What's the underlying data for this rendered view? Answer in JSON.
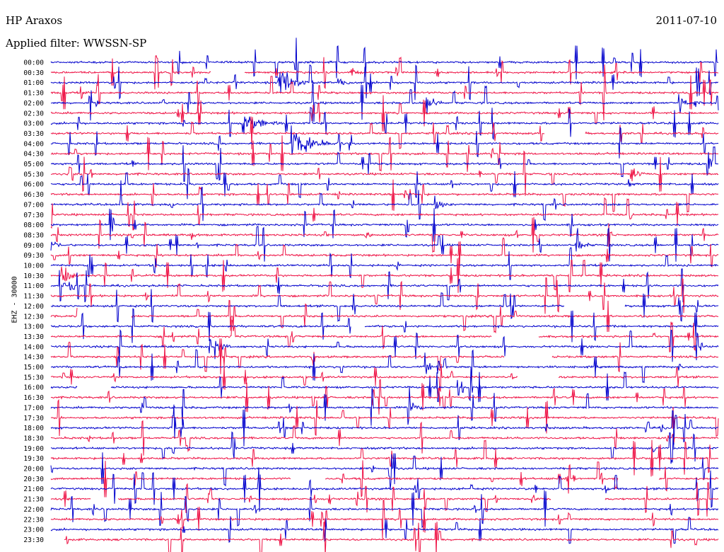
{
  "header": {
    "station": "HP Araxos",
    "date": "2011-07-10",
    "filter": "Applied filter: WWSSN-SP",
    "channel": "EHZ - 30000"
  },
  "colors": {
    "even_row": "#0000cc",
    "odd_row": "#ee1144"
  },
  "chart_data": {
    "type": "line",
    "title": "HP Araxos",
    "ylabel": "EHZ - 30000",
    "row_labels": [
      "00:00",
      "00:30",
      "01:00",
      "01:30",
      "02:00",
      "02:30",
      "03:00",
      "03:30",
      "04:00",
      "04:30",
      "05:00",
      "05:30",
      "06:00",
      "06:30",
      "07:00",
      "07:30",
      "08:00",
      "08:30",
      "09:00",
      "09:30",
      "10:00",
      "10:30",
      "11:00",
      "11:30",
      "12:00",
      "12:30",
      "13:00",
      "13:30",
      "14:00",
      "14:30",
      "15:00",
      "15:30",
      "16:00",
      "16:30",
      "17:00",
      "17:30",
      "18:00",
      "18:30",
      "19:00",
      "19:30",
      "20:00",
      "20:30",
      "21:00",
      "21:30",
      "22:00",
      "22:30",
      "23:00",
      "23:30"
    ],
    "events": [
      {
        "row": 2,
        "start": 0.34,
        "duration": 0.06,
        "amp": 14
      },
      {
        "row": 1,
        "start": 0.45,
        "duration": 0.02,
        "amp": 5
      },
      {
        "row": 2,
        "start": 0.43,
        "duration": 0.05,
        "amp": 5
      },
      {
        "row": 4,
        "start": 0.56,
        "duration": 0.03,
        "amp": 12
      },
      {
        "row": 4,
        "start": 0.94,
        "duration": 0.02,
        "amp": 14
      },
      {
        "row": 4,
        "start": 0.963,
        "duration": 0.015,
        "amp": 9
      },
      {
        "row": 6,
        "start": 0.285,
        "duration": 0.06,
        "amp": 13
      },
      {
        "row": 8,
        "start": 0.36,
        "duration": 0.08,
        "amp": 15
      },
      {
        "row": 11,
        "start": 0.87,
        "duration": 0.02,
        "amp": 10
      },
      {
        "row": 12,
        "start": 0.865,
        "duration": 0.01,
        "amp": 6
      },
      {
        "row": 14,
        "start": 0.575,
        "duration": 0.025,
        "amp": 10
      },
      {
        "row": 17,
        "start": 0.21,
        "duration": 0.02,
        "amp": 5
      },
      {
        "row": 17,
        "start": 0.47,
        "duration": 0.02,
        "amp": 6
      },
      {
        "row": 18,
        "start": 0.0,
        "duration": 0.02,
        "amp": 8
      },
      {
        "row": 18,
        "start": 0.785,
        "duration": 0.025,
        "amp": 10
      },
      {
        "row": 21,
        "start": 0.015,
        "duration": 0.03,
        "amp": 16
      },
      {
        "row": 28,
        "start": 0.245,
        "duration": 0.025,
        "amp": 12
      },
      {
        "row": 30,
        "start": 0.56,
        "duration": 0.02,
        "amp": 10
      },
      {
        "row": 34,
        "start": 0.535,
        "duration": 0.025,
        "amp": 14
      },
      {
        "row": 42,
        "start": 0.83,
        "duration": 0.015,
        "amp": 6
      },
      {
        "row": 43,
        "start": 0.72,
        "duration": 0.015,
        "amp": 6
      }
    ],
    "gaps": [
      {
        "row": 1,
        "start": 0.24,
        "end": 0.29
      },
      {
        "row": 7,
        "start": 0.74,
        "end": 0.8
      },
      {
        "row": 24,
        "start": 0.77,
        "end": 0.86
      },
      {
        "row": 25,
        "start": 0.04,
        "end": 0.12
      },
      {
        "row": 26,
        "start": 0.45,
        "end": 0.47
      },
      {
        "row": 27,
        "start": 0.66,
        "end": 0.73
      },
      {
        "row": 29,
        "start": 0.68,
        "end": 0.75
      },
      {
        "row": 31,
        "start": 0.7,
        "end": 0.76
      },
      {
        "row": 32,
        "start": 0.04,
        "end": 0.09
      },
      {
        "row": 41,
        "start": 0.36,
        "end": 0.41
      },
      {
        "row": 41,
        "start": 0.85,
        "end": 0.91
      },
      {
        "row": 43,
        "start": 0.06,
        "end": 0.1
      },
      {
        "row": 43,
        "start": 0.75,
        "end": 0.83
      },
      {
        "row": 47,
        "start": 0.0,
        "end": 0.02
      }
    ]
  }
}
